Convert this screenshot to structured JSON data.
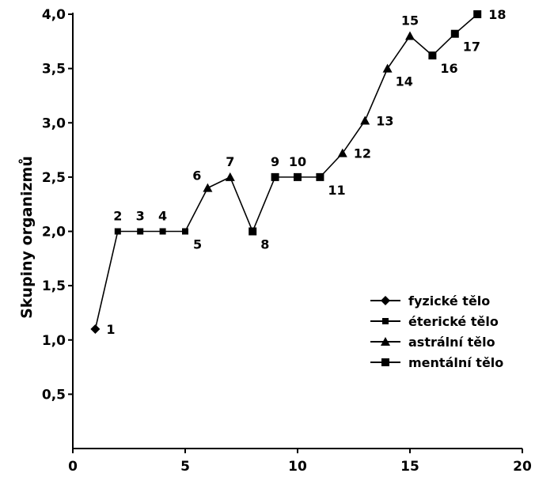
{
  "chart_data": {
    "type": "line",
    "title": "",
    "xlabel": "",
    "ylabel": "Skupiny organizmů",
    "xlim": [
      0,
      20
    ],
    "ylim": [
      0,
      4.0
    ],
    "x_ticks": [
      0,
      5,
      10,
      15,
      20
    ],
    "y_ticks": [
      0.5,
      1.0,
      1.5,
      2.0,
      2.5,
      3.0,
      3.5,
      4.0
    ],
    "x_tick_labels": [
      "0",
      "5",
      "10",
      "15",
      "20"
    ],
    "y_tick_labels": [
      "0,5",
      "1,0",
      "1,5",
      "2,0",
      "2,5",
      "3,0",
      "3,5",
      "4,0"
    ],
    "grid": false,
    "legend_position": "center-right",
    "series": [
      {
        "name": "fyzické tělo",
        "marker": "diamond",
        "indices": [
          0
        ]
      },
      {
        "name": "éterické tělo",
        "marker": "small-square",
        "indices": [
          1,
          2,
          3,
          4
        ]
      },
      {
        "name": "astrální tělo",
        "marker": "triangle",
        "indices": [
          5,
          6,
          11,
          12,
          13,
          14
        ]
      },
      {
        "name": "mentální tělo",
        "marker": "square",
        "indices": [
          7,
          8,
          9,
          10,
          15,
          16,
          17
        ]
      }
    ],
    "points": [
      {
        "label": "1",
        "x": 1.0,
        "y": 1.1,
        "label_pos": "right"
      },
      {
        "label": "2",
        "x": 2.0,
        "y": 2.0,
        "label_pos": "above"
      },
      {
        "label": "3",
        "x": 3.0,
        "y": 2.0,
        "label_pos": "above"
      },
      {
        "label": "4",
        "x": 4.0,
        "y": 2.0,
        "label_pos": "above"
      },
      {
        "label": "5",
        "x": 5.0,
        "y": 2.0,
        "label_pos": "below-right"
      },
      {
        "label": "6",
        "x": 6.0,
        "y": 2.4,
        "label_pos": "above-left"
      },
      {
        "label": "7",
        "x": 7.0,
        "y": 2.5,
        "label_pos": "above"
      },
      {
        "label": "8",
        "x": 8.0,
        "y": 2.0,
        "label_pos": "below-right"
      },
      {
        "label": "9",
        "x": 9.0,
        "y": 2.5,
        "label_pos": "above"
      },
      {
        "label": "10",
        "x": 10.0,
        "y": 2.5,
        "label_pos": "above"
      },
      {
        "label": "11",
        "x": 11.0,
        "y": 2.5,
        "label_pos": "below-right"
      },
      {
        "label": "12",
        "x": 12.0,
        "y": 2.72,
        "label_pos": "right"
      },
      {
        "label": "13",
        "x": 13.0,
        "y": 3.02,
        "label_pos": "right"
      },
      {
        "label": "14",
        "x": 14.0,
        "y": 3.5,
        "label_pos": "below-right"
      },
      {
        "label": "15",
        "x": 15.0,
        "y": 3.8,
        "label_pos": "above"
      },
      {
        "label": "16",
        "x": 16.0,
        "y": 3.62,
        "label_pos": "below-right"
      },
      {
        "label": "17",
        "x": 17.0,
        "y": 3.82,
        "label_pos": "below-right"
      },
      {
        "label": "18",
        "x": 18.0,
        "y": 4.0,
        "label_pos": "right"
      }
    ]
  }
}
